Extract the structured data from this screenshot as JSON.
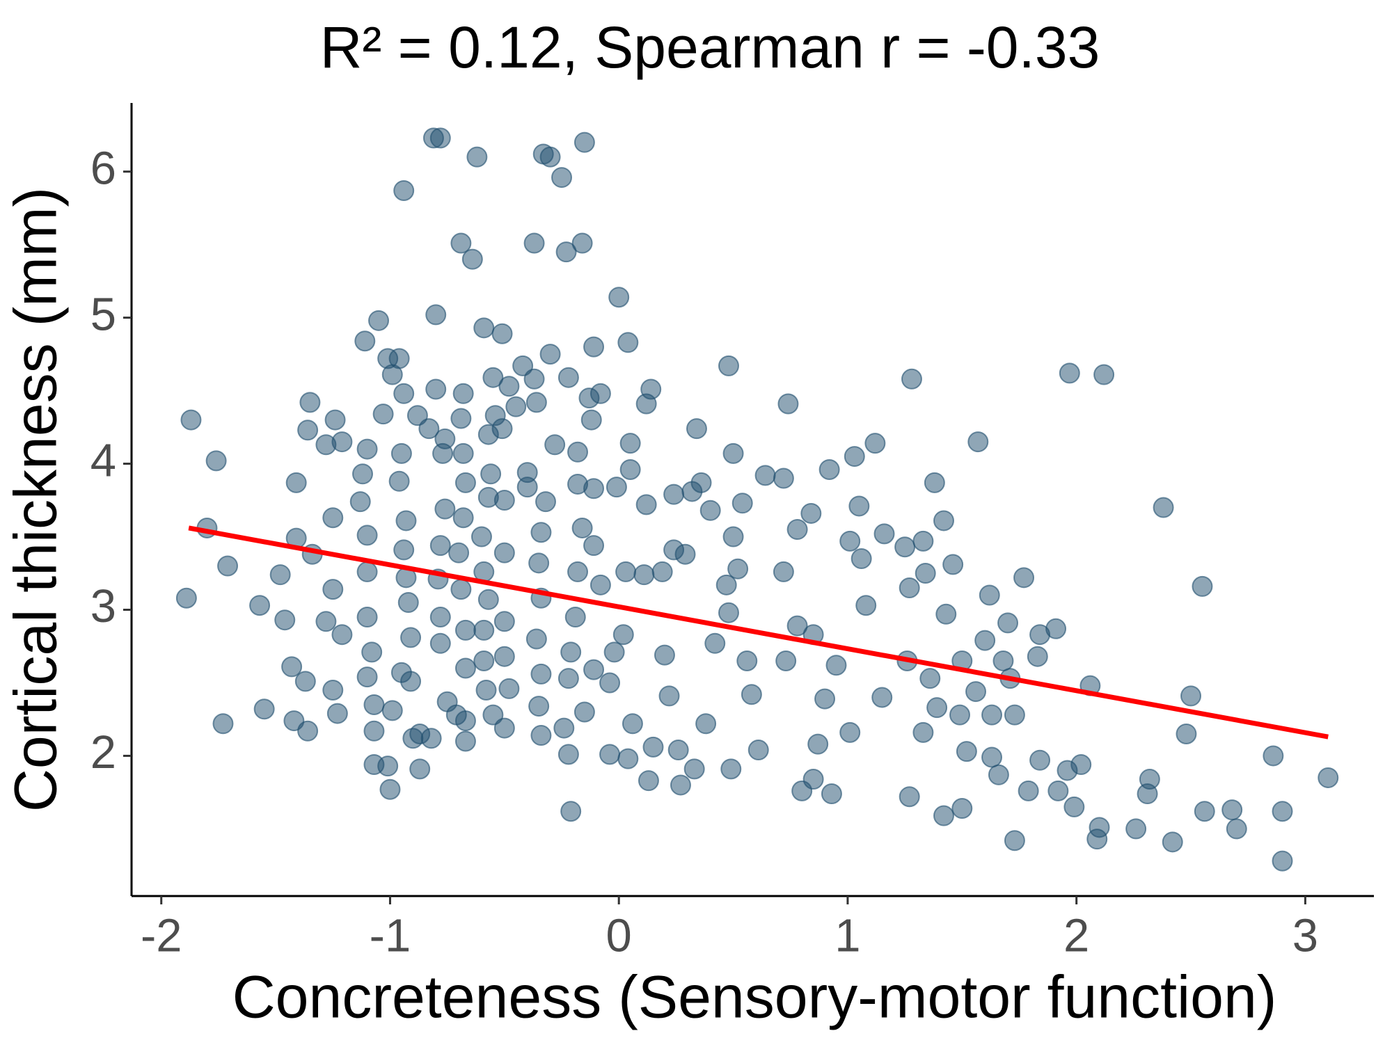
{
  "chart_data": {
    "type": "scatter",
    "title": "R² = 0.12, Spearman r = -0.33",
    "x_label": "Concreteness (Sensory-motor function)",
    "y_label": "Cortical thickness (mm)",
    "xlim": [
      -2.13,
      3.3
    ],
    "ylim": [
      1.04,
      6.47
    ],
    "xticks": [
      -2,
      -1,
      0,
      1,
      2,
      3
    ],
    "yticks": [
      2,
      3,
      4,
      5,
      6
    ],
    "color": "#1f4e6e",
    "x": [
      -1.87,
      -1.76,
      -1.8,
      -1.71,
      -1.89,
      -1.73,
      -1.55,
      -1.57,
      -1.48,
      -1.35,
      -1.36,
      -1.41,
      -1.41,
      -1.34,
      -1.46,
      -1.43,
      -1.37,
      -1.36,
      -1.42,
      -1.24,
      -1.21,
      -1.28,
      -1.25,
      -1.25,
      -1.28,
      -1.23,
      -1.25,
      -1.21,
      -1.11,
      -1.05,
      -1.01,
      -0.99,
      -0.96,
      -0.94,
      -1.03,
      -1.1,
      -1.12,
      -1.13,
      -1.1,
      -1.1,
      -1.1,
      -1.08,
      -1.1,
      -1.07,
      -1.07,
      -1.07,
      -1.01,
      -1.0,
      -0.95,
      -0.96,
      -0.93,
      -0.94,
      -0.93,
      -0.92,
      -0.91,
      -0.95,
      -0.91,
      -0.99,
      -0.87,
      -0.87,
      -0.9,
      -0.94,
      -0.81,
      -0.78,
      -0.8,
      -0.8,
      -0.88,
      -0.83,
      -0.76,
      -0.77,
      -0.76,
      -0.78,
      -0.79,
      -0.78,
      -0.78,
      -0.75,
      -0.82,
      -0.71,
      -0.69,
      -0.64,
      -0.62,
      -0.68,
      -0.69,
      -0.68,
      -0.67,
      -0.68,
      -0.7,
      -0.69,
      -0.67,
      -0.67,
      -0.67,
      -0.67,
      -0.59,
      -0.55,
      -0.57,
      -0.54,
      -0.56,
      -0.57,
      -0.6,
      -0.59,
      -0.57,
      -0.59,
      -0.59,
      -0.58,
      -0.55,
      -0.51,
      -0.48,
      -0.51,
      -0.5,
      -0.5,
      -0.5,
      -0.5,
      -0.48,
      -0.5,
      -0.42,
      -0.37,
      -0.33,
      -0.3,
      -0.25,
      -0.23,
      -0.16,
      -0.15,
      -0.37,
      -0.36,
      -0.45,
      -0.28,
      -0.4,
      -0.4,
      -0.32,
      -0.34,
      -0.35,
      -0.34,
      -0.36,
      -0.34,
      -0.35,
      -0.34,
      -0.24,
      -0.22,
      -0.21,
      -0.3,
      -0.22,
      -0.18,
      -0.18,
      -0.16,
      -0.18,
      -0.19,
      -0.21,
      -0.22,
      -0.15,
      -0.11,
      -0.13,
      -0.08,
      -0.12,
      -0.11,
      -0.11,
      -0.08,
      -0.11,
      -0.04,
      -0.01,
      0.0,
      0.04,
      0.05,
      0.05,
      0.03,
      0.02,
      -0.02,
      -0.04,
      0.04,
      0.06,
      0.11,
      0.12,
      0.14,
      0.12,
      0.15,
      0.13,
      0.19,
      0.2,
      0.22,
      0.24,
      0.24,
      0.26,
      0.27,
      0.29,
      0.32,
      0.34,
      0.36,
      0.33,
      0.4,
      0.38,
      0.42,
      0.48,
      0.47,
      0.48,
      0.5,
      0.5,
      0.52,
      0.49,
      0.54,
      0.56,
      0.58,
      0.61,
      0.64,
      0.72,
      0.74,
      0.72,
      0.73,
      0.78,
      0.78,
      0.8,
      0.85,
      0.84,
      0.85,
      0.87,
      0.9,
      0.92,
      0.93,
      0.95,
      1.01,
      1.03,
      1.05,
      1.06,
      1.08,
      1.01,
      1.12,
      1.16,
      1.15,
      1.25,
      1.28,
      1.27,
      1.26,
      1.27,
      1.33,
      1.34,
      1.33,
      1.36,
      1.38,
      1.39,
      1.42,
      1.43,
      1.42,
      1.46,
      1.49,
      1.5,
      1.5,
      1.52,
      1.56,
      1.57,
      1.6,
      1.62,
      1.63,
      1.63,
      1.66,
      1.68,
      1.7,
      1.71,
      1.73,
      1.73,
      1.77,
      1.79,
      1.83,
      1.84,
      1.84,
      1.91,
      1.92,
      1.97,
      1.96,
      1.99,
      2.02,
      2.06,
      2.1,
      2.12,
      2.09,
      2.26,
      2.32,
      2.31,
      2.38,
      2.42,
      2.5,
      2.48,
      2.55,
      2.56,
      2.68,
      2.7,
      2.86,
      2.9,
      2.9,
      3.1
    ],
    "values": [
      4.3,
      4.02,
      3.56,
      3.3,
      3.08,
      2.22,
      2.32,
      3.03,
      3.24,
      4.42,
      4.23,
      3.87,
      3.49,
      3.38,
      2.93,
      2.61,
      2.51,
      2.17,
      2.24,
      4.3,
      4.15,
      4.13,
      3.63,
      3.14,
      2.92,
      2.29,
      2.45,
      2.83,
      4.84,
      4.98,
      4.72,
      4.61,
      4.72,
      4.48,
      4.34,
      4.1,
      3.93,
      3.74,
      3.51,
      3.26,
      2.95,
      2.71,
      2.54,
      2.35,
      2.17,
      1.94,
      1.93,
      1.77,
      4.07,
      3.88,
      3.61,
      3.41,
      3.22,
      3.05,
      2.81,
      2.57,
      2.51,
      2.31,
      1.91,
      2.15,
      2.12,
      5.87,
      6.23,
      6.23,
      5.02,
      4.51,
      4.33,
      4.24,
      4.17,
      4.07,
      3.69,
      3.44,
      3.21,
      2.95,
      2.77,
      2.37,
      2.12,
      2.28,
      5.51,
      5.4,
      6.1,
      4.48,
      4.31,
      4.07,
      3.87,
      3.63,
      3.39,
      3.14,
      2.86,
      2.6,
      2.24,
      2.1,
      4.93,
      4.59,
      4.2,
      4.33,
      3.93,
      3.77,
      3.5,
      3.26,
      3.07,
      2.86,
      2.65,
      2.45,
      2.28,
      4.89,
      4.53,
      4.24,
      3.75,
      3.39,
      2.92,
      2.68,
      2.46,
      2.19,
      4.67,
      5.51,
      6.12,
      6.1,
      5.96,
      5.45,
      5.51,
      6.2,
      4.58,
      4.42,
      4.39,
      4.13,
      3.94,
      3.84,
      3.74,
      3.53,
      3.32,
      3.08,
      2.8,
      2.56,
      2.34,
      2.14,
      2.19,
      2.01,
      1.62,
      4.75,
      4.59,
      4.08,
      3.86,
      3.56,
      3.26,
      2.95,
      2.71,
      2.53,
      2.3,
      4.8,
      4.45,
      4.48,
      4.3,
      3.83,
      3.44,
      3.17,
      2.59,
      2.5,
      3.84,
      5.14,
      4.83,
      4.14,
      3.96,
      3.26,
      2.83,
      2.71,
      2.01,
      1.98,
      2.22,
      3.24,
      4.41,
      4.51,
      3.72,
      2.06,
      1.83,
      3.26,
      2.69,
      2.41,
      3.79,
      3.41,
      2.04,
      1.8,
      3.38,
      3.81,
      4.24,
      3.87,
      1.91,
      3.68,
      2.22,
      2.77,
      4.67,
      3.17,
      2.98,
      4.07,
      3.5,
      3.28,
      1.91,
      3.73,
      2.65,
      2.42,
      2.04,
      3.92,
      3.9,
      4.41,
      3.26,
      2.65,
      2.89,
      3.55,
      1.76,
      1.84,
      3.66,
      2.83,
      2.08,
      2.39,
      3.96,
      1.74,
      2.62,
      3.47,
      4.05,
      3.71,
      3.35,
      3.03,
      2.16,
      4.14,
      3.52,
      2.4,
      3.43,
      4.58,
      3.15,
      2.65,
      1.72,
      3.47,
      3.25,
      2.16,
      2.53,
      3.87,
      2.33,
      3.61,
      2.97,
      1.59,
      3.31,
      2.28,
      1.64,
      2.65,
      2.03,
      2.44,
      4.15,
      2.79,
      3.1,
      2.28,
      1.99,
      1.87,
      2.65,
      2.91,
      2.53,
      1.42,
      2.28,
      3.22,
      1.76,
      2.68,
      2.83,
      1.97,
      2.87,
      1.76,
      4.62,
      1.9,
      1.65,
      1.94,
      2.48,
      1.51,
      4.61,
      1.43,
      1.5,
      1.84,
      1.74,
      3.7,
      1.41,
      2.41,
      2.15,
      3.16,
      1.62,
      1.63,
      1.5,
      2.0,
      1.28,
      1.62,
      1.85
    ],
    "fit": {
      "x": [
        -1.88,
        3.1
      ],
      "values": [
        3.56,
        2.13
      ],
      "color": "#ff0000"
    }
  }
}
